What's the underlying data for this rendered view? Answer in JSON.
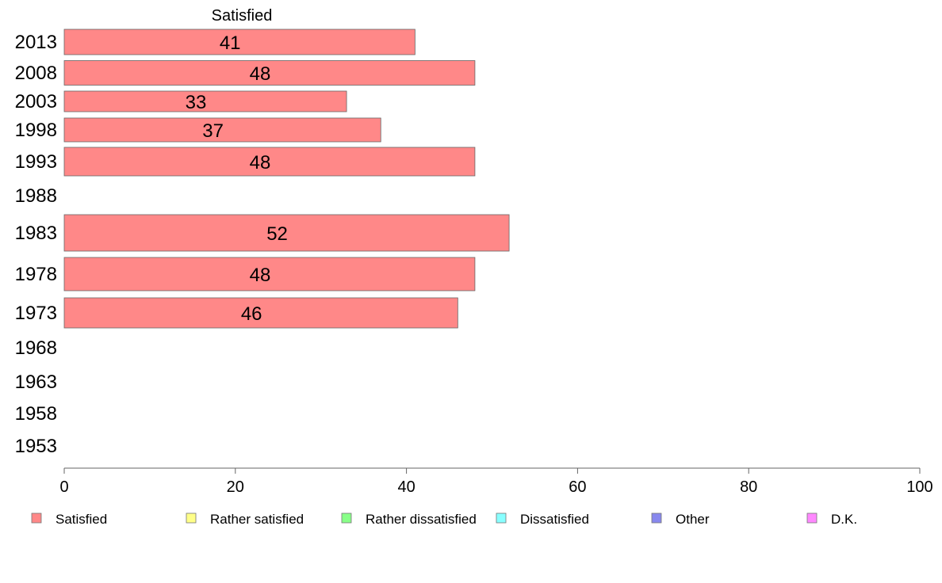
{
  "chart_data": {
    "type": "bar",
    "orientation": "horizontal",
    "series_title": "Satisfied",
    "categories": [
      "2013",
      "2008",
      "2003",
      "1998",
      "1993",
      "1988",
      "1983",
      "1978",
      "1973",
      "1968",
      "1963",
      "1958",
      "1953"
    ],
    "series": [
      {
        "name": "Satisfied",
        "color": "#ff8888",
        "values": [
          41,
          48,
          33,
          37,
          48,
          null,
          52,
          48,
          46,
          null,
          null,
          null,
          null
        ]
      }
    ],
    "xlim": [
      0,
      100
    ],
    "xticks": [
      0,
      20,
      40,
      60,
      80,
      100
    ],
    "grid": false,
    "legend_position": "bottom",
    "legend": [
      {
        "label": "Satisfied",
        "color": "#ff8888"
      },
      {
        "label": "Rather satisfied",
        "color": "#ffff88"
      },
      {
        "label": "Rather dissatisfied",
        "color": "#88ff88"
      },
      {
        "label": "Dissatisfied",
        "color": "#88ffff"
      },
      {
        "label": "Other",
        "color": "#8888ee"
      },
      {
        "label": "D.K.",
        "color": "#ff88ff"
      }
    ]
  }
}
